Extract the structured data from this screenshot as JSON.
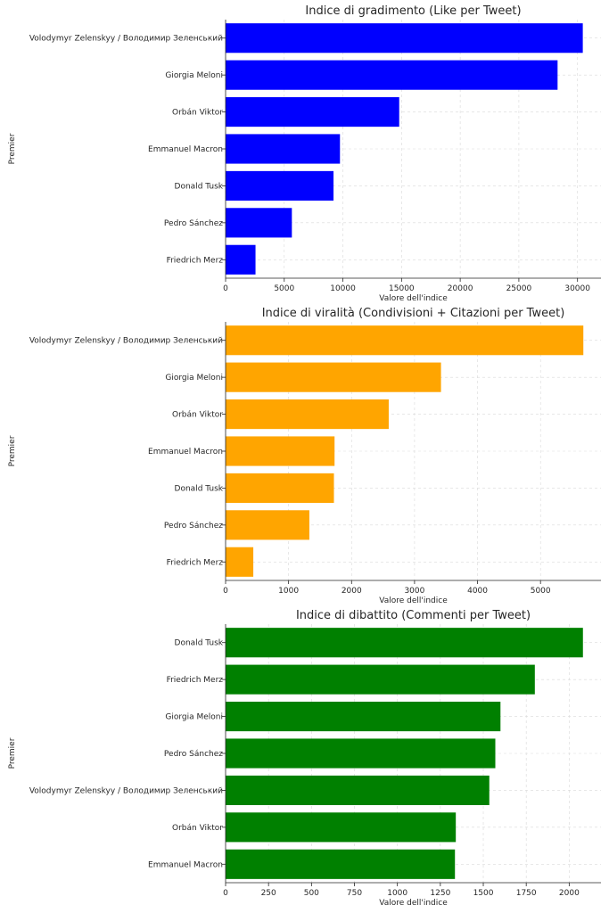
{
  "chart_data": [
    {
      "type": "bar",
      "orientation": "horizontal",
      "title": "Indice di gradimento (Like per Tweet)",
      "xlabel": "Valore dell'indice",
      "ylabel": "Premier",
      "color": "#0000ff",
      "categories": [
        "Volodymyr Zelenskyy / Володимир Зеленський",
        "Giorgia Meloni",
        "Orbán Viktor",
        "Emmanuel Macron",
        "Donald Tusk",
        "Pedro Sánchez",
        "Friedrich Merz"
      ],
      "values": [
        30450,
        28300,
        14800,
        9750,
        9200,
        5650,
        2550
      ],
      "xlim": [
        0,
        32000
      ],
      "xticks": [
        0,
        5000,
        10000,
        15000,
        20000,
        25000,
        30000
      ],
      "grid": true
    },
    {
      "type": "bar",
      "orientation": "horizontal",
      "title": "Indice di viralità (Condivisioni + Citazioni per Tweet)",
      "xlabel": "Valore dell'indice",
      "ylabel": "Premier",
      "color": "#ffa500",
      "categories": [
        "Volodymyr Zelenskyy / Володимир Зеленський",
        "Giorgia Meloni",
        "Orbán Viktor",
        "Emmanuel Macron",
        "Donald Tusk",
        "Pedro Sánchez",
        "Friedrich Merz"
      ],
      "values": [
        5680,
        3420,
        2590,
        1730,
        1720,
        1330,
        440
      ],
      "xlim": [
        0,
        5960
      ],
      "xticks": [
        0,
        1000,
        2000,
        3000,
        4000,
        5000
      ],
      "grid": true
    },
    {
      "type": "bar",
      "orientation": "horizontal",
      "title": "Indice di dibattito (Commenti per Tweet)",
      "xlabel": "Valore dell'indice",
      "ylabel": "Premier",
      "color": "#008000",
      "categories": [
        "Donald Tusk",
        "Friedrich Merz",
        "Giorgia Meloni",
        "Pedro Sánchez",
        "Volodymyr Zelenskyy / Володимир Зеленський",
        "Orbán Viktor",
        "Emmanuel Macron"
      ],
      "values": [
        2080,
        1800,
        1600,
        1570,
        1535,
        1340,
        1335
      ],
      "xlim": [
        0,
        2185
      ],
      "xticks": [
        0,
        250,
        500,
        750,
        1000,
        1250,
        1500,
        1750,
        2000
      ],
      "grid": true
    }
  ]
}
